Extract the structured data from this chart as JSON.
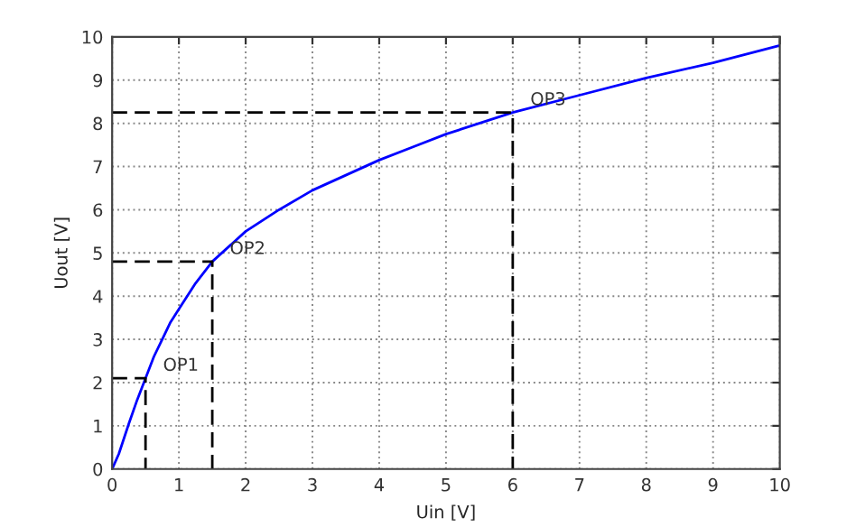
{
  "chart_data": {
    "type": "line",
    "xlabel": "Uin [V]",
    "ylabel": "Uout [V]",
    "xlim": [
      0,
      10
    ],
    "ylim": [
      0,
      10
    ],
    "xticks": [
      0,
      1,
      2,
      3,
      4,
      5,
      6,
      7,
      8,
      9,
      10
    ],
    "yticks": [
      0,
      1,
      2,
      3,
      4,
      5,
      6,
      7,
      8,
      9,
      10
    ],
    "grid": true,
    "marker": "none",
    "series": [
      {
        "color": "#0000ff",
        "line_style": "solid",
        "x": [
          0,
          0.1,
          0.25,
          0.375,
          0.5,
          0.625,
          0.75,
          0.875,
          1,
          1.25,
          1.5,
          1.75,
          2,
          2.5,
          3,
          3.5,
          4,
          4.5,
          5,
          6,
          7,
          8,
          9,
          10
        ],
        "values": [
          0,
          0.35,
          1.05,
          1.6,
          2.1,
          2.6,
          3.0,
          3.4,
          3.7,
          4.3,
          4.8,
          5.15,
          5.5,
          6.0,
          6.45,
          6.8,
          7.15,
          7.45,
          7.75,
          8.25,
          8.65,
          9.05,
          9.4,
          9.8
        ]
      },
      {
        "color": "#000000",
        "line_style": "dashed",
        "x": [
          0,
          0.5,
          0.5
        ],
        "values": [
          2.1,
          2.1,
          0
        ]
      },
      {
        "color": "#000000",
        "line_style": "dashed",
        "x": [
          0,
          1.5,
          1.5
        ],
        "values": [
          4.8,
          4.8,
          0
        ]
      },
      {
        "color": "#000000",
        "line_style": "dashed",
        "x": [
          0,
          6,
          6
        ],
        "values": [
          8.25,
          8.25,
          0
        ]
      }
    ],
    "annotations": [
      {
        "text": "OP1",
        "x": 0.5,
        "y": 2.1
      },
      {
        "text": "OP2",
        "x": 1.5,
        "y": 4.8
      },
      {
        "text": "OP3",
        "x": 6,
        "y": 8.25
      }
    ]
  }
}
